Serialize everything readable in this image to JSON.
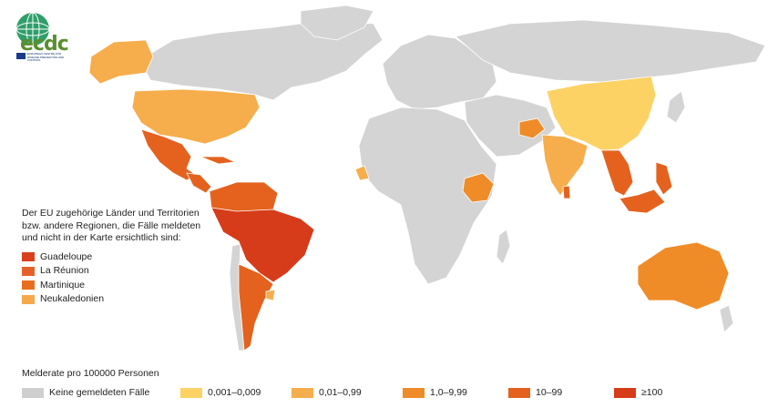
{
  "logo": {
    "text": "ecdc",
    "subtext": "EUROPEAN CENTRE FOR DISEASE PREVENTION AND CONTROL"
  },
  "side_legend": {
    "intro": "Der EU zugehörige Länder und Territorien bzw. andere Regionen, die Fälle meldeten und nicht in der Karte ersichtlich sind:",
    "items": [
      {
        "label": "Guadeloupe",
        "color": "#d9401c"
      },
      {
        "label": "La Réunion",
        "color": "#e4622a"
      },
      {
        "label": "Martinique",
        "color": "#e86e20"
      },
      {
        "label": "Neukaledonien",
        "color": "#f5a94a"
      }
    ]
  },
  "legend": {
    "title": "Melderate pro 100000 Personen",
    "classes": [
      {
        "label": "Keine gemeldeten Fälle",
        "color": "#cfcfcf"
      },
      {
        "label": "0,001–0,009",
        "color": "#fcd265"
      },
      {
        "label": "0,01–0,99",
        "color": "#f6ad4c"
      },
      {
        "label": "1,0–9,99",
        "color": "#ef8c28"
      },
      {
        "label": "10–99",
        "color": "#e4621e"
      },
      {
        "label": "≥100",
        "color": "#d63c1a"
      }
    ]
  },
  "map_data": {
    "land_color": "#d4d4d4",
    "border_color": "#ffffff",
    "regions": [
      {
        "name": "Nordamerika (übrige)",
        "class": 0
      },
      {
        "name": "Alaska",
        "class": 2
      },
      {
        "name": "USA",
        "class": 2
      },
      {
        "name": "Mexiko",
        "class": 4
      },
      {
        "name": "Mittelamerika",
        "class": 4
      },
      {
        "name": "Kuba",
        "class": 4
      },
      {
        "name": "Südamerika (Nord)",
        "class": 4
      },
      {
        "name": "Brasilien",
        "class": 5
      },
      {
        "name": "Argentinien",
        "class": 4
      },
      {
        "name": "Chile",
        "class": 0
      },
      {
        "name": "Europa",
        "class": 0
      },
      {
        "name": "Afrika",
        "class": 0
      },
      {
        "name": "Äthiopien",
        "class": 3
      },
      {
        "name": "Westafrika",
        "class": 2
      },
      {
        "name": "Afghanistan",
        "class": 3
      },
      {
        "name": "Indien",
        "class": 2
      },
      {
        "name": "Sri Lanka",
        "class": 4
      },
      {
        "name": "China",
        "class": 1
      },
      {
        "name": "Südostasien",
        "class": 4
      },
      {
        "name": "Philippinen",
        "class": 4
      },
      {
        "name": "Malaysia/Indonesien",
        "class": 4
      },
      {
        "name": "Australien",
        "class": 3
      }
    ]
  }
}
